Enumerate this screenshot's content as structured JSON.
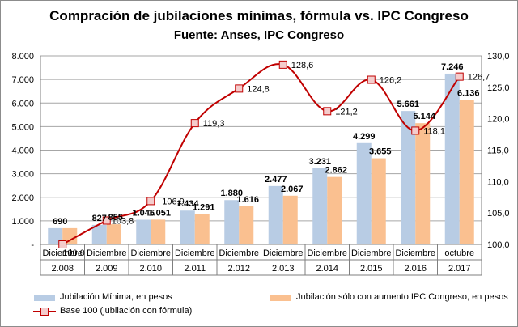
{
  "chart_data": {
    "type": "bar",
    "title": "Compración  de jubilaciones  mínimas,  fórmula vs. IPC Congreso",
    "subtitle": "Fuente: Anses, IPC Congreso",
    "categories": [
      [
        "Diciembre",
        "2.008"
      ],
      [
        "Diciembre",
        "2.009"
      ],
      [
        "Diciembre",
        "2.010"
      ],
      [
        "Diciembre",
        "2.011"
      ],
      [
        "Diciembre",
        "2.012"
      ],
      [
        "Diciembre",
        "2.013"
      ],
      [
        "Diciembre",
        "2.014"
      ],
      [
        "Diciembre",
        "2.015"
      ],
      [
        "Diciembre",
        "2.016"
      ],
      [
        "octubre",
        "2.017"
      ]
    ],
    "y_left": {
      "min": 0,
      "max": 8000,
      "ticks": [
        "-",
        "1.000",
        "2.000",
        "3.000",
        "4.000",
        "5.000",
        "6.000",
        "7.000",
        "8.000"
      ]
    },
    "y_right": {
      "min": 100,
      "max": 130,
      "ticks": [
        "100,0",
        "105,0",
        "110,0",
        "115,0",
        "120,0",
        "125,0",
        "130,0"
      ]
    },
    "series": [
      {
        "name": "Jubilación Mínima, en pesos",
        "kind": "bar",
        "color": "#b8cce4",
        "values": [
          690,
          827,
          1046,
          1434,
          1880,
          2477,
          3231,
          4299,
          5661,
          7246
        ],
        "labels": [
          "690",
          "827",
          "1.046",
          "1.434",
          "1.880",
          "2.477",
          "3.231",
          "4.299",
          "5.661",
          "7.246"
        ]
      },
      {
        "name": "Jubilación sólo con aumento IPC Congreso, en pesos",
        "kind": "bar",
        "color": "#fac090",
        "values": [
          690,
          855,
          1051,
          1291,
          1616,
          2067,
          2862,
          3655,
          5144,
          6136
        ],
        "labels": [
          "",
          "855",
          "1.051",
          "1.291",
          "1.616",
          "2.067",
          "2.862",
          "3.655",
          "5.144",
          "6.136"
        ]
      },
      {
        "name": "Base 100 (jubilación con fórmula)",
        "kind": "line",
        "axis": "right",
        "color": "#c00000",
        "values": [
          100.0,
          103.8,
          106.9,
          119.3,
          124.8,
          128.6,
          121.2,
          126.2,
          118.1,
          126.7
        ],
        "labels": [
          "100,0",
          "103,8",
          "106,9",
          "119,3",
          "124,8",
          "128,6",
          "121,2",
          "126,2",
          "118,1",
          "126,7"
        ]
      }
    ],
    "grid": true,
    "legend_position": "bottom"
  }
}
